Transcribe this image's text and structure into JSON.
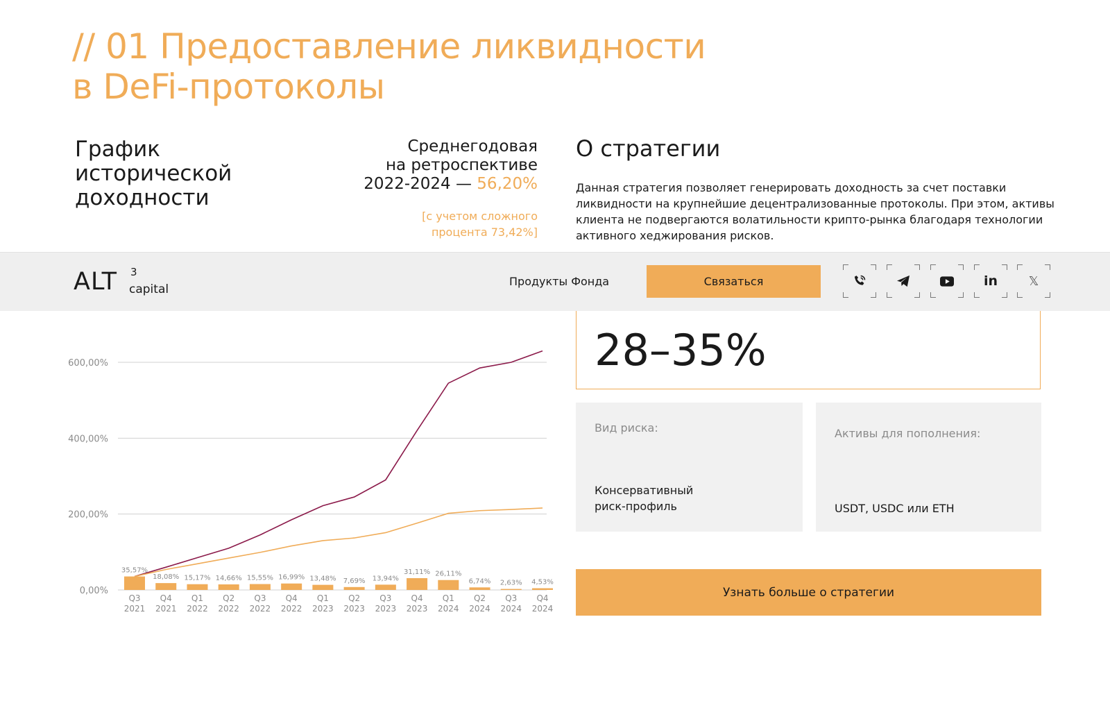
{
  "header": {
    "title_line1": "// 01 Предоставление ликвидности",
    "title_line2": "в DeFi-протоколы"
  },
  "history": {
    "title_line1": "График",
    "title_line2": "исторической",
    "title_line3": "доходности"
  },
  "average": {
    "line1": "Среднегодовая",
    "line2": "на ретроспективе",
    "period": "2022-2024 — ",
    "value": "56,20%",
    "compound_line1": "[с учетом сложного",
    "compound_line2": "процента 73,42%]"
  },
  "about": {
    "title": "О стратегии",
    "text": "Данная стратегия позволяет генерировать доходность за счет поставки ликвидности на крупнейшие децентрализованные протоколы. При этом, активы клиента не подвергаются волатильности крипто-рынка благодаря технологии активного хеджирования рисков."
  },
  "nav": {
    "logo_main": "ALT",
    "logo_sup": "3",
    "logo_sub": "capital",
    "products_link": "Продукты Фонда",
    "contact_button": "Связаться",
    "social_icons": [
      "phone-icon",
      "telegram-icon",
      "youtube-icon",
      "linkedin-icon",
      "x-icon"
    ]
  },
  "strategy": {
    "rate": "28–35%",
    "risk_label": "Вид риска:",
    "risk_value_line1": "Консервативный",
    "risk_value_line2": "риск-профиль",
    "assets_label": "Активы для пополнения:",
    "assets_value": "USDT, USDC или ETH",
    "more_button": "Узнать больше о стратегии"
  },
  "colors": {
    "accent": "#f0ac58",
    "line_cumulative": "#8b1a4a",
    "line_simple": "#f0ac58",
    "card_bg": "#f1f1f1",
    "navbar_bg": "#efefef"
  },
  "chart_data": {
    "type": "bar+line",
    "categories": [
      "Q3 2021",
      "Q4 2021",
      "Q1 2022",
      "Q2 2022",
      "Q3 2022",
      "Q4 2022",
      "Q1 2023",
      "Q2 2023",
      "Q3 2023",
      "Q4 2023",
      "Q1 2024",
      "Q2 2024",
      "Q3 2024",
      "Q4 2024"
    ],
    "quarter_labels": [
      "Q3",
      "Q4",
      "Q1",
      "Q2",
      "Q3",
      "Q4",
      "Q1",
      "Q2",
      "Q3",
      "Q4",
      "Q1",
      "Q2",
      "Q3",
      "Q4"
    ],
    "year_labels": [
      "2021",
      "2021",
      "2022",
      "2022",
      "2022",
      "2022",
      "2023",
      "2023",
      "2023",
      "2023",
      "2024",
      "2024",
      "2024",
      "2024"
    ],
    "bars": {
      "values": [
        35.57,
        18.08,
        15.17,
        14.66,
        15.55,
        16.99,
        13.48,
        7.69,
        13.94,
        31.11,
        26.11,
        6.74,
        2.63,
        4.53
      ],
      "labels": [
        "35,57%",
        "18,08%",
        "15,17%",
        "14,66%",
        "15,55%",
        "16,99%",
        "13,48%",
        "7,69%",
        "13,94%",
        "31,11%",
        "26,11%",
        "6,74%",
        "2,63%",
        "4,53%"
      ]
    },
    "series": [
      {
        "values": [
          35.6,
          60,
          85,
          110,
          145,
          185,
          222,
          245,
          290,
          420,
          545,
          585,
          600,
          630
        ]
      },
      {
        "values": [
          35.6,
          54,
          69,
          84,
          99,
          116,
          130,
          137,
          151,
          176,
          202,
          209,
          212,
          216
        ]
      }
    ],
    "y_ticks": [
      0,
      200,
      400,
      600
    ],
    "y_tick_labels": [
      "0,00%",
      "200,00%",
      "400,00%",
      "600,00%"
    ],
    "ylim": [
      0,
      650
    ],
    "grid": true
  }
}
